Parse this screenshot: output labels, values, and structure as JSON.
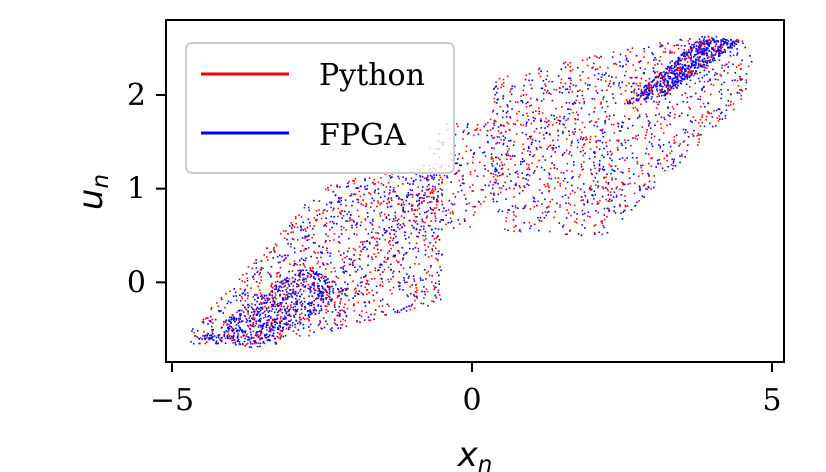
{
  "chart_data": {
    "type": "scatter",
    "title": "",
    "xlabel": {
      "base": "x",
      "sub": "n"
    },
    "ylabel": {
      "base": "u",
      "sub": "n"
    },
    "xlim": [
      -5.1,
      5.2
    ],
    "ylim": [
      -0.85,
      2.8
    ],
    "x_ticks": [
      {
        "value": -5,
        "label": "−5"
      },
      {
        "value": 0,
        "label": "0"
      },
      {
        "value": 5,
        "label": "5"
      }
    ],
    "y_ticks": [
      {
        "value": 0,
        "label": "0"
      },
      {
        "value": 1,
        "label": "1"
      },
      {
        "value": 2,
        "label": "2"
      }
    ],
    "grid": false,
    "legend_position": "top-left",
    "series": [
      {
        "name": "Python",
        "color": "#ff0000"
      },
      {
        "name": "FPGA",
        "color": "#0000ff"
      }
    ],
    "regions": [
      {
        "name": "lower-left-band",
        "points": [
          [
            -4.7,
            -0.65
          ],
          [
            -3.2,
            -0.65
          ],
          [
            -0.5,
            -0.2
          ],
          [
            -0.5,
            1.3
          ],
          [
            -2.5,
            1.05
          ],
          [
            -4.7,
            -0.5
          ]
        ]
      },
      {
        "name": "upper-right-band",
        "points": [
          [
            0.5,
            0.55
          ],
          [
            2.2,
            0.5
          ],
          [
            4.6,
            2.0
          ],
          [
            4.7,
            2.6
          ],
          [
            3.7,
            2.65
          ],
          [
            0.3,
            2.2
          ],
          [
            0.3,
            0.9
          ]
        ]
      },
      {
        "name": "center-connection",
        "points": [
          [
            -1.5,
            0.5
          ],
          [
            0.0,
            0.6
          ],
          [
            1.0,
            1.8
          ],
          [
            -0.5,
            1.7
          ]
        ]
      }
    ],
    "dense_strips": [
      {
        "name": "lower-dense-strip",
        "points": [
          [
            -4.6,
            -0.6
          ],
          [
            -3.6,
            -0.7
          ],
          [
            -2.0,
            -0.1
          ],
          [
            -2.8,
            0.2
          ]
        ]
      },
      {
        "name": "upper-dense-strip",
        "points": [
          [
            2.5,
            1.9
          ],
          [
            3.2,
            2.0
          ],
          [
            4.5,
            2.6
          ],
          [
            3.8,
            2.62
          ]
        ]
      }
    ]
  }
}
